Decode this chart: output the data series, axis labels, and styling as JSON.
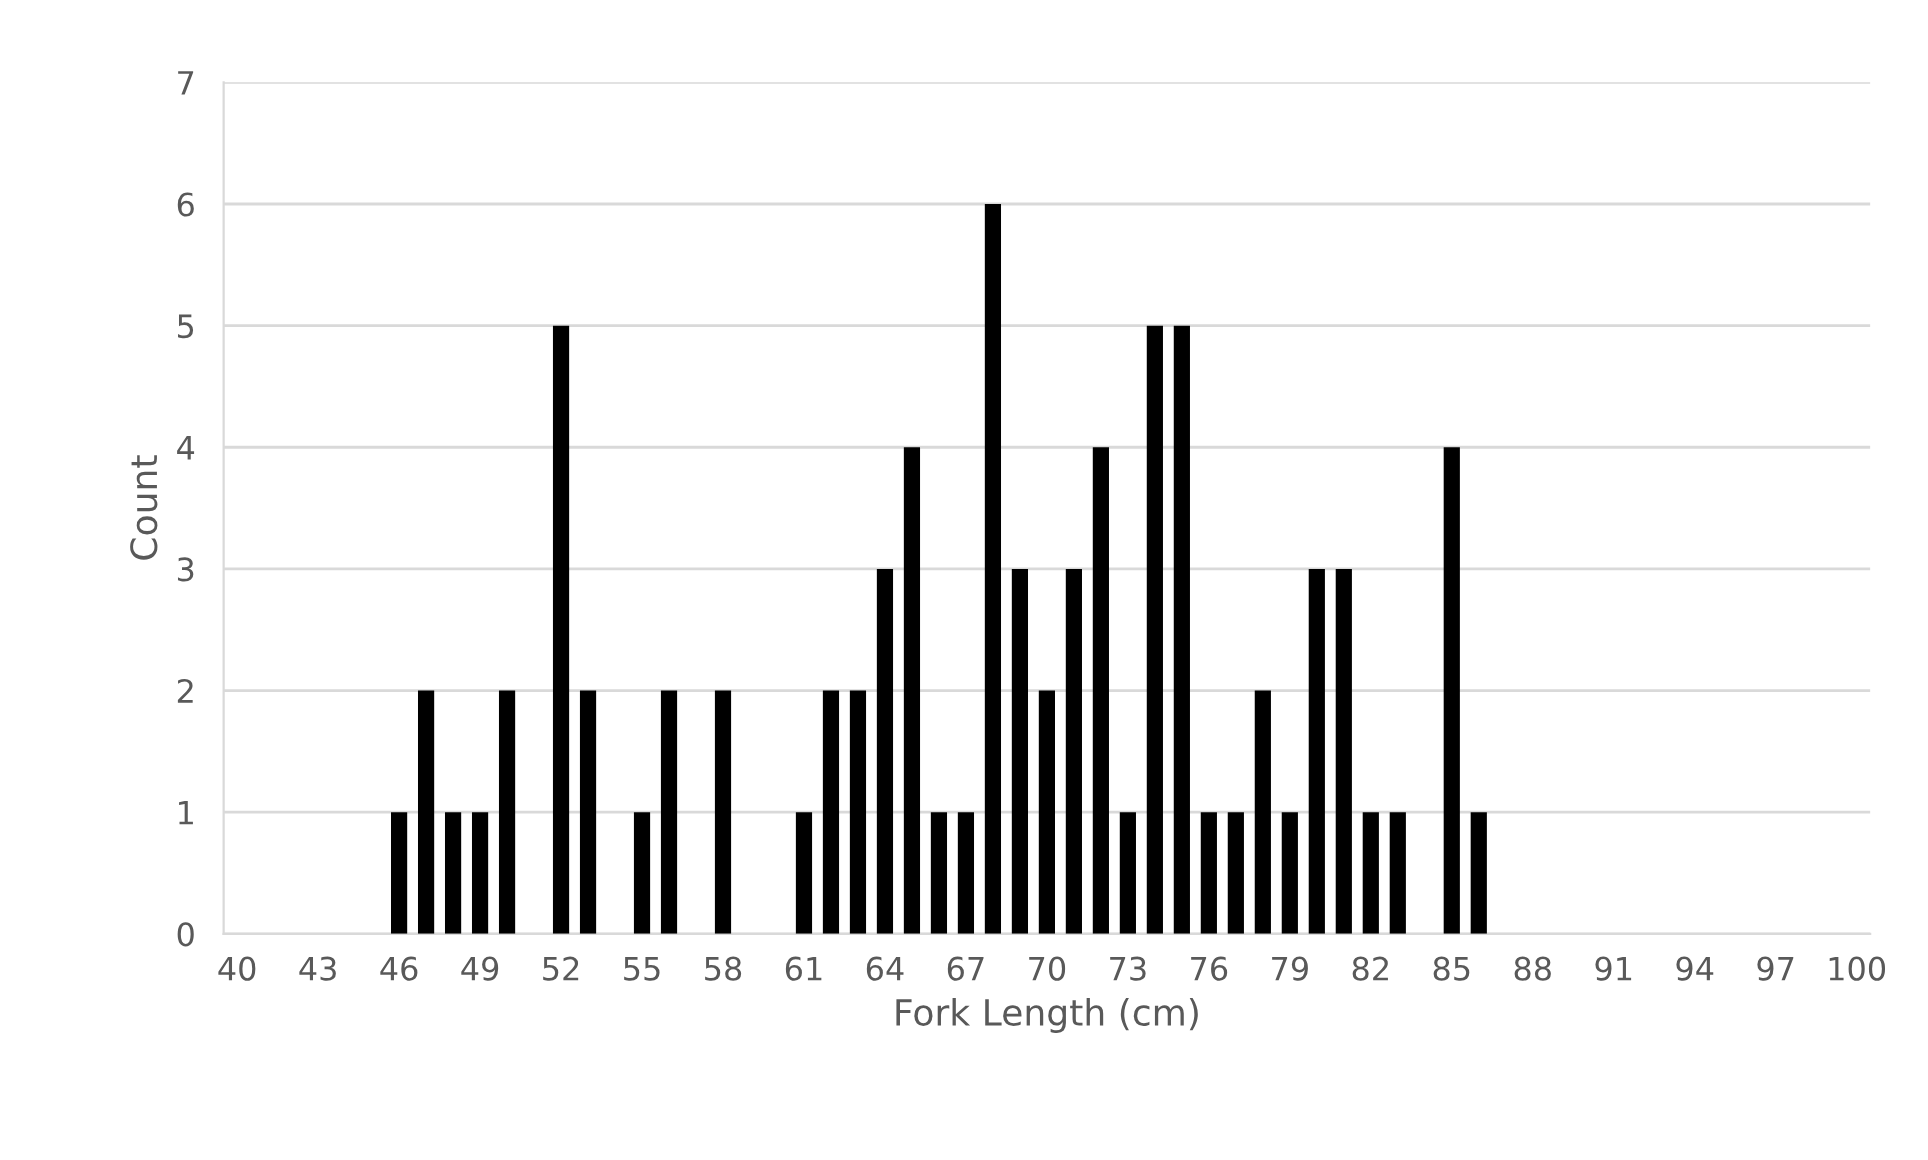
{
  "chart_data": {
    "type": "bar",
    "xlabel": "Fork Length (cm)",
    "ylabel": "Count",
    "categories": [
      "40",
      null,
      null,
      "43",
      null,
      null,
      "46",
      null,
      null,
      "49",
      null,
      null,
      "52",
      null,
      null,
      "55",
      null,
      null,
      "58",
      null,
      null,
      "61",
      null,
      null,
      "64",
      null,
      null,
      "67",
      null,
      null,
      "70",
      null,
      null,
      "73",
      null,
      null,
      "76",
      null,
      null,
      "79",
      null,
      null,
      "82",
      null,
      null,
      "85",
      null,
      null,
      "88",
      null,
      null,
      "91",
      null,
      null,
      "94",
      null,
      null,
      "97",
      null,
      null,
      "100"
    ],
    "values": [
      0,
      0,
      0,
      0,
      0,
      0,
      1,
      2,
      1,
      1,
      2,
      0,
      5,
      2,
      0,
      1,
      2,
      0,
      2,
      0,
      0,
      1,
      2,
      2,
      3,
      4,
      1,
      1,
      6,
      3,
      2,
      3,
      4,
      1,
      5,
      5,
      1,
      1,
      2,
      1,
      3,
      3,
      1,
      1,
      0,
      4,
      1,
      0,
      0,
      0,
      0,
      0,
      0,
      0,
      0,
      0,
      0,
      0,
      0,
      0,
      0
    ],
    "color": "#000000",
    "ylim": [
      0,
      7
    ],
    "yticks": [
      0,
      1,
      2,
      3,
      4,
      5,
      6,
      7
    ],
    "grid": "y"
  }
}
